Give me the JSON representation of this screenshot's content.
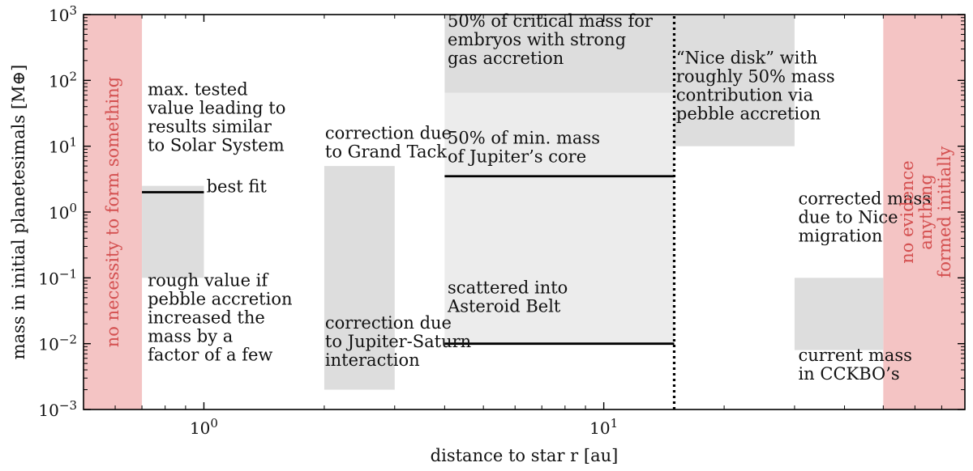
{
  "chart_data": {
    "type": "annotated-region-plot",
    "xlabel": "distance to star r [au]",
    "ylabel": "mass in initial planetesimals [M⊕]",
    "xscale": "log",
    "yscale": "log",
    "xlim": [
      0.5,
      80
    ],
    "ylim": [
      0.001,
      1000
    ],
    "grid": false,
    "legend": "none",
    "x_ticks": [
      {
        "value": 1,
        "label": "10^0"
      },
      {
        "value": 10,
        "label": "10^1"
      }
    ],
    "y_ticks": [
      {
        "value": 0.001,
        "label": "10^-3"
      },
      {
        "value": 0.01,
        "label": "10^-2"
      },
      {
        "value": 0.1,
        "label": "10^-1"
      },
      {
        "value": 1,
        "label": "10^0"
      },
      {
        "value": 10,
        "label": "10^1"
      },
      {
        "value": 100,
        "label": "10^2"
      },
      {
        "value": 1000,
        "label": "10^3"
      }
    ],
    "colors": {
      "excluded_region": "#f4c4c4",
      "estimate_box": "#dddddd",
      "light_region": "#ececec",
      "line": "#000000"
    },
    "regions": [
      {
        "id": "left-excluded",
        "x": [
          0.5,
          0.7
        ],
        "y": [
          0.001,
          1000
        ],
        "color": "excluded_region"
      },
      {
        "id": "right-excluded",
        "x": [
          50,
          80
        ],
        "y": [
          0.001,
          1000
        ],
        "color": "excluded_region"
      },
      {
        "id": "pebble-box",
        "x": [
          0.7,
          1.0
        ],
        "y": [
          0.1,
          2.5
        ],
        "color": "estimate_box"
      },
      {
        "id": "grand-tack-box",
        "x": [
          2.0,
          3.0
        ],
        "y": [
          0.002,
          5
        ],
        "color": "estimate_box"
      },
      {
        "id": "asteroid-light-region",
        "x": [
          4.0,
          15.0
        ],
        "y": [
          0.01,
          3.5
        ],
        "color": "light_region"
      },
      {
        "id": "core-region",
        "x": [
          4.0,
          15.0
        ],
        "y": [
          3.5,
          65
        ],
        "color": "light_region"
      },
      {
        "id": "critical-mass-region",
        "x": [
          4.0,
          15.0
        ],
        "y": [
          65,
          1000
        ],
        "color": "estimate_box"
      },
      {
        "id": "nice-disk-region",
        "x": [
          15.0,
          30.0
        ],
        "y": [
          10,
          1000
        ],
        "color": "estimate_box"
      },
      {
        "id": "kbo-box",
        "x": [
          30.0,
          50.0
        ],
        "y": [
          0.008,
          0.1
        ],
        "color": "estimate_box"
      }
    ],
    "lines": [
      {
        "id": "best-fit-line",
        "x": [
          0.7,
          1.0
        ],
        "y": [
          2,
          2
        ],
        "style": "solid"
      },
      {
        "id": "jupiter-core-line",
        "x": [
          4.0,
          15.0
        ],
        "y": [
          3.5,
          3.5
        ],
        "style": "solid"
      },
      {
        "id": "asteroid-belt-line",
        "x": [
          4.0,
          15.0
        ],
        "y": [
          0.01,
          0.01
        ],
        "style": "solid"
      },
      {
        "id": "separator-line",
        "x": [
          15.0,
          15.0
        ],
        "y": [
          0.001,
          1000
        ],
        "style": "dotted"
      }
    ],
    "annotations": [
      {
        "id": "ann-max-tested",
        "x": 0.72,
        "y": 60,
        "color": "#111111",
        "lines": [
          "max. tested",
          "value leading to",
          "results similar",
          "to Solar System"
        ]
      },
      {
        "id": "ann-best-fit",
        "x": 1.01,
        "y": 2,
        "color": "#111111",
        "lines": [
          "best fit"
        ]
      },
      {
        "id": "ann-rough-value",
        "x": 0.72,
        "y": 0.075,
        "color": "#111111",
        "lines": [
          "rough value if",
          "pebble accretion",
          "increased the",
          "mass by a",
          "factor of a few"
        ]
      },
      {
        "id": "ann-grand-tack",
        "x": 2.0,
        "y": 13,
        "color": "#111111",
        "lines": [
          "correction due",
          "to Grand Tack"
        ]
      },
      {
        "id": "ann-jupiter-saturn",
        "x": 2.0,
        "y": 0.017,
        "color": "#111111",
        "lines": [
          "correction due",
          "to Jupiter-Saturn",
          "interaction"
        ]
      },
      {
        "id": "ann-critical-mass",
        "x": 4.05,
        "y": 650,
        "color": "#111111",
        "lines": [
          "50% of critical mass for",
          "embryos with strong",
          "gas accretion"
        ]
      },
      {
        "id": "ann-min-mass",
        "x": 4.05,
        "y": 11,
        "color": "#111111",
        "lines": [
          "50% of min. mass",
          "of Jupiter’s core"
        ]
      },
      {
        "id": "ann-asteroid-belt",
        "x": 4.05,
        "y": 0.058,
        "color": "#111111",
        "lines": [
          "scattered into",
          "Asteroid Belt"
        ]
      },
      {
        "id": "ann-nice-disk",
        "x": 15.1,
        "y": 180,
        "color": "#111111",
        "lines": [
          "“Nice disk” with",
          "roughly 50% mass",
          "contribution via",
          "pebble accretion"
        ]
      },
      {
        "id": "ann-corrected-mass",
        "x": 30.5,
        "y": 1.3,
        "color": "#111111",
        "lines": [
          "corrected mass",
          "due to Nice",
          "migration"
        ]
      },
      {
        "id": "ann-current-mass",
        "x": 30.5,
        "y": 0.0055,
        "color": "#111111",
        "lines": [
          "current mass",
          "in CCKBO’s"
        ]
      }
    ],
    "vertical_annotations": [
      {
        "id": "vann-left",
        "x": 0.592,
        "color": "#d45050",
        "lines": [
          "no necessity to form something"
        ]
      },
      {
        "id": "vann-right",
        "x": 64,
        "color": "#d45050",
        "lines": [
          "no evidence",
          "anything",
          "formed initially"
        ]
      }
    ]
  }
}
